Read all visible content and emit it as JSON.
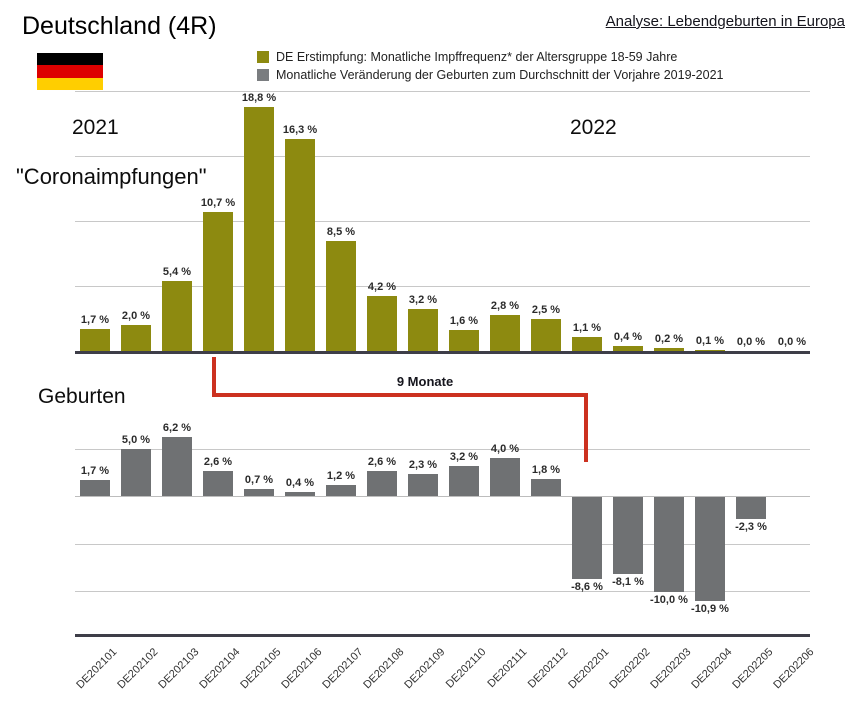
{
  "header": {
    "title": "Deutschland (4R)",
    "analysis_link": "Analyse: Lebendgeburten in Europa",
    "flag_colors": [
      "#000000",
      "#dd0000",
      "#ffce00"
    ]
  },
  "legend": {
    "items": [
      {
        "label": "DE Erstimpfung: Monatliche Impffrequenz* der Altersgruppe 18-59 Jahre",
        "color": "#8d8a10"
      },
      {
        "label": "Monatliche Veränderung der Geburten zum Durchschnitt der Vorjahre 2019-2021",
        "color": "#7a7d80"
      }
    ]
  },
  "annotations": {
    "year_left": "2021",
    "year_right": "2022",
    "vaccinations_label": "\"Coronaimpfungen\"",
    "births_label": "Geburten",
    "nine_months_label": "9 Monate",
    "connector_color": "#cc3120"
  },
  "x_axis": {
    "categories": [
      "DE202101",
      "DE202102",
      "DE202103",
      "DE202104",
      "DE202105",
      "DE202106",
      "DE202107",
      "DE202108",
      "DE202109",
      "DE202110",
      "DE202111",
      "DE202112",
      "DE202201",
      "DE202202",
      "DE202203",
      "DE202204",
      "DE202205",
      "DE202206"
    ]
  },
  "chart_data": [
    {
      "type": "bar",
      "name": "vaccinations",
      "title": "DE Erstimpfung: Monatliche Impffrequenz* der Altersgruppe 18-59 Jahre",
      "categories": [
        "DE202101",
        "DE202102",
        "DE202103",
        "DE202104",
        "DE202105",
        "DE202106",
        "DE202107",
        "DE202108",
        "DE202109",
        "DE202110",
        "DE202111",
        "DE202112",
        "DE202201",
        "DE202202",
        "DE202203",
        "DE202204",
        "DE202205",
        "DE202206"
      ],
      "values": [
        1.7,
        2.0,
        5.4,
        10.7,
        18.8,
        16.3,
        8.5,
        4.2,
        3.2,
        1.6,
        2.8,
        2.5,
        1.1,
        0.4,
        0.2,
        0.1,
        0.0,
        0.0
      ],
      "labels": [
        "1,7 %",
        "2,0 %",
        "5,4 %",
        "10,7 %",
        "18,8 %",
        "16,3 %",
        "8,5 %",
        "4,2 %",
        "3,2 %",
        "1,6 %",
        "2,8 %",
        "2,5 %",
        "1,1 %",
        "0,4 %",
        "0,2 %",
        "0,1 %",
        "0,0 %",
        "0,0 %"
      ],
      "bar_color": "#8d8a10",
      "ylim": [
        0,
        20
      ],
      "gridlines_pct": [
        5,
        10,
        15,
        20
      ],
      "grid": true,
      "ylabel": "",
      "xlabel": ""
    },
    {
      "type": "bar",
      "name": "births",
      "title": "Monatliche Veränderung der Geburten zum Durchschnitt der Vorjahre 2019-2021",
      "categories": [
        "DE202101",
        "DE202102",
        "DE202103",
        "DE202104",
        "DE202105",
        "DE202106",
        "DE202107",
        "DE202108",
        "DE202109",
        "DE202110",
        "DE202111",
        "DE202112",
        "DE202201",
        "DE202202",
        "DE202203",
        "DE202204",
        "DE202205",
        "DE202206"
      ],
      "values": [
        1.7,
        5.0,
        6.2,
        2.6,
        0.7,
        0.4,
        1.2,
        2.6,
        2.3,
        3.2,
        4.0,
        1.8,
        -8.6,
        -8.1,
        -10.0,
        -10.9,
        -2.3,
        null
      ],
      "labels": [
        "1,7 %",
        "5,0 %",
        "6,2 %",
        "2,6 %",
        "0,7 %",
        "0,4 %",
        "1,2 %",
        "2,6 %",
        "2,3 %",
        "3,2 %",
        "4,0 %",
        "1,8 %",
        "-8,6 %",
        "-8,1 %",
        "-10,0 %",
        "-10,9 %",
        "-2,3 %",
        null
      ],
      "bar_color": "#6f7173",
      "ylim": [
        -15,
        7
      ],
      "gridlines_pct": [
        5,
        -5,
        -10
      ],
      "grid": true,
      "ylabel": "",
      "xlabel": ""
    }
  ]
}
